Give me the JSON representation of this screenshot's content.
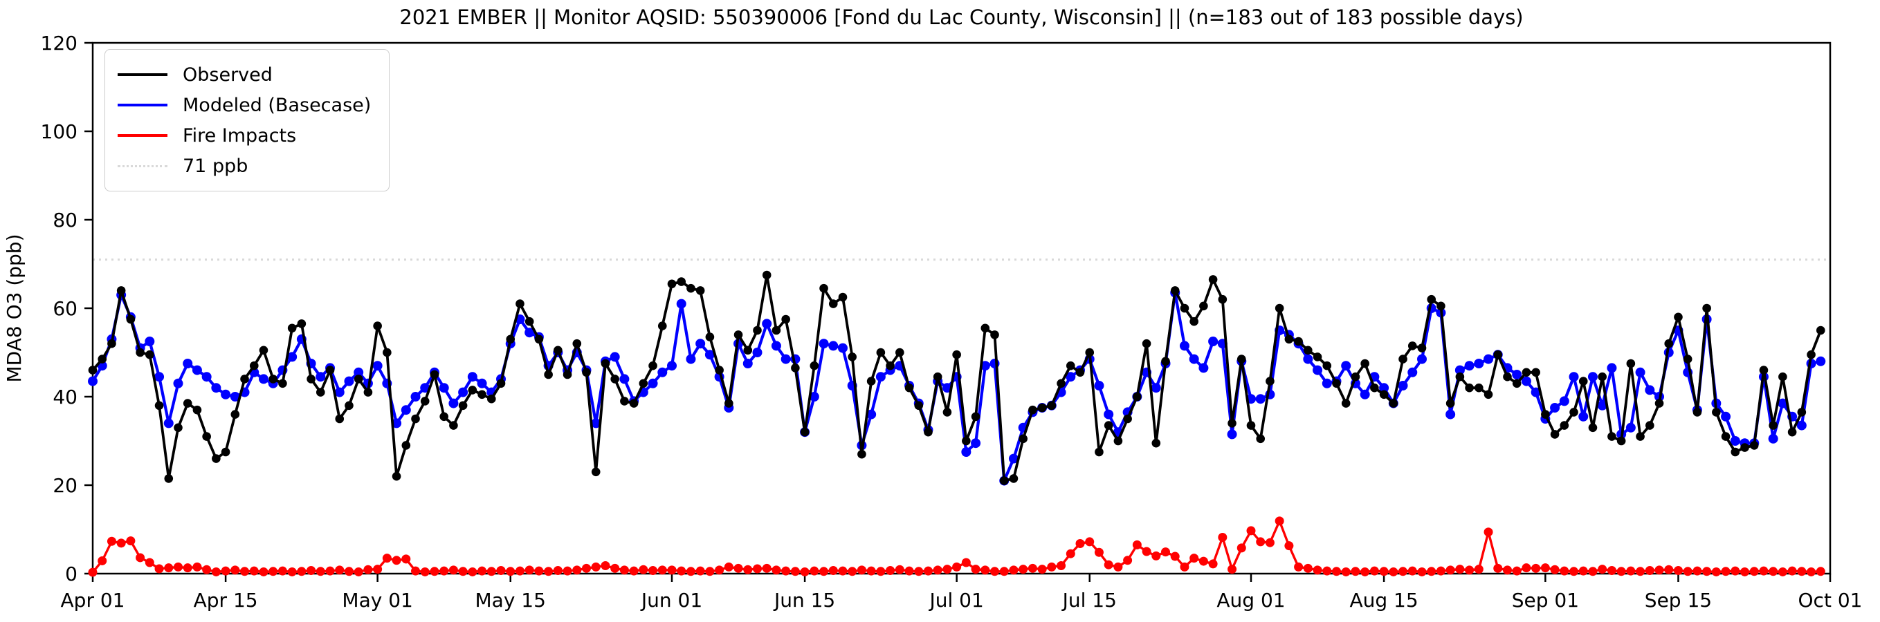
{
  "title": "2021 EMBER || Monitor AQSID: 550390006 [Fond du Lac County, Wisconsin] || (n=183 out of 183 possible days)",
  "chart_data": {
    "type": "line",
    "title": "2021 EMBER || Monitor AQSID: 550390006 [Fond du Lac County, Wisconsin] || (n=183 out of 183 possible days)",
    "xlabel": "",
    "ylabel": "MDA8 O3 (ppb)",
    "ylim": [
      0,
      120
    ],
    "yticks": [
      0,
      20,
      40,
      60,
      80,
      100,
      120
    ],
    "n_days": 183,
    "x_start": "Apr 01 2021",
    "x_end": "Oct 01 2021",
    "x_tick_labels": [
      "Apr 01",
      "Apr 15",
      "May 01",
      "May 15",
      "Jun 01",
      "Jun 15",
      "Jul 01",
      "Jul 15",
      "Aug 01",
      "Aug 15",
      "Sep 01",
      "Sep 15",
      "Oct 01"
    ],
    "x_tick_day_offsets": [
      0,
      14,
      30,
      44,
      61,
      75,
      91,
      105,
      122,
      136,
      153,
      167,
      183
    ],
    "grid": false,
    "legend_position": "upper left",
    "threshold_line": {
      "value": 71,
      "label": "71 ppb",
      "color": "#d9d9d9",
      "style": "dotted"
    },
    "series": [
      {
        "name": "Observed",
        "color": "#000000",
        "marker": "circle",
        "values": [
          46,
          48.5,
          52,
          64,
          57.5,
          50,
          49.5,
          38,
          21.5,
          33,
          38.5,
          37,
          31,
          26,
          27.5,
          36,
          44,
          47,
          50.5,
          44,
          43,
          55.5,
          56.5,
          44,
          41,
          46,
          35,
          38,
          44,
          41,
          56,
          50,
          22,
          29,
          35,
          39,
          45,
          35.5,
          33.5,
          38,
          41.5,
          40.5,
          39.5,
          43,
          53,
          61,
          57,
          53,
          45,
          50.5,
          45,
          52,
          45.5,
          23,
          47.5,
          44,
          39,
          38.5,
          43,
          47,
          56,
          65.5,
          66,
          64.5,
          64,
          53.5,
          46,
          38.5,
          54,
          50.5,
          55,
          67.5,
          55,
          57.5,
          46.5,
          32,
          47,
          64.5,
          61,
          62.5,
          49,
          27,
          43.5,
          50,
          47,
          50,
          42,
          38,
          32,
          44.5,
          36.5,
          49.5,
          30,
          35.5,
          55.5,
          54,
          21,
          21.5,
          30.5,
          37,
          37.5,
          38,
          43,
          47,
          45.5,
          50,
          27.5,
          33.5,
          30,
          35,
          40,
          52,
          29.5,
          48,
          64,
          60,
          57,
          60.5,
          66.5,
          62,
          34,
          48.5,
          33.5,
          30.5,
          43.5,
          60,
          53,
          52.5,
          50.5,
          49,
          47,
          43,
          38.5,
          44.5,
          47.5,
          42,
          40.5,
          38.5,
          48.5,
          51.5,
          51,
          62,
          60.5,
          38.5,
          44.5,
          42,
          42,
          40.5,
          49.5,
          44.5,
          43,
          45.5,
          45.5,
          36,
          31.5,
          33.5,
          36.5,
          43.5,
          33,
          44.5,
          31,
          30,
          47.5,
          31,
          33.5,
          38.5,
          52,
          58,
          48.5,
          36.5,
          60,
          36.5,
          31,
          27.5,
          28.5,
          29,
          46,
          33.5,
          44.5,
          32,
          36.5,
          49.5,
          55
        ]
      },
      {
        "name": "Modeled (Basecase)",
        "color": "#0000ff",
        "marker": "circle",
        "values": [
          43.5,
          47,
          53,
          63,
          58,
          51,
          52.5,
          44.5,
          34,
          43,
          47.5,
          46,
          44.5,
          42,
          40.5,
          40,
          41,
          45.5,
          44,
          43,
          46,
          49,
          53,
          47.5,
          44.5,
          46.5,
          41,
          43.5,
          45.5,
          43,
          47,
          43,
          34,
          37,
          40,
          42,
          45.5,
          42,
          38.5,
          41,
          44.5,
          43,
          41,
          44,
          52,
          57.5,
          54.5,
          53.5,
          47,
          50,
          46,
          50,
          46,
          34,
          48,
          49,
          44,
          39,
          41,
          43,
          45.5,
          47,
          61,
          48.5,
          52,
          49.5,
          44.5,
          37.5,
          52,
          47.5,
          50,
          56.5,
          51.5,
          48.5,
          48.5,
          32,
          40,
          52,
          51.5,
          51,
          42.5,
          29,
          36,
          44.5,
          46,
          47,
          42.5,
          38.5,
          32.5,
          43.5,
          42,
          44.5,
          27.5,
          29.5,
          47,
          47.5,
          21,
          26,
          33,
          36.5,
          37.5,
          38,
          41,
          44.5,
          46,
          48.5,
          42.5,
          36,
          32,
          36.5,
          40,
          45.5,
          42,
          47.5,
          63.5,
          51.5,
          48.5,
          46.5,
          52.5,
          52,
          31.5,
          48,
          39.5,
          39.5,
          40.5,
          55,
          54,
          52,
          48.5,
          46,
          43,
          43.5,
          47,
          43,
          40.5,
          44.5,
          42,
          38.5,
          42.5,
          45.5,
          48.5,
          60,
          59,
          36,
          46,
          47,
          47.5,
          48.5,
          49.5,
          46.5,
          45,
          43.5,
          41,
          35,
          37.5,
          39,
          44.5,
          35.5,
          44.5,
          38,
          46.5,
          31.5,
          33,
          45.5,
          41.5,
          40,
          50,
          55,
          45.5,
          37,
          57.5,
          38.5,
          35.5,
          30,
          29.5,
          29.5,
          44.5,
          30.5,
          38.5,
          35.5,
          33.5,
          47.5,
          48
        ]
      },
      {
        "name": "Fire Impacts",
        "color": "#ff0000",
        "marker": "circle",
        "values": [
          0.3,
          2.9,
          7.3,
          6.9,
          7.4,
          3.6,
          2.5,
          1.1,
          1.3,
          1.5,
          1.3,
          1.5,
          0.9,
          0.4,
          0.6,
          0.8,
          0.5,
          0.6,
          0.4,
          0.5,
          0.6,
          0.4,
          0.5,
          0.7,
          0.5,
          0.6,
          0.8,
          0.5,
          0.4,
          0.9,
          1.0,
          3.5,
          3.0,
          3.3,
          0.6,
          0.4,
          0.5,
          0.6,
          0.8,
          0.5,
          0.4,
          0.6,
          0.5,
          0.7,
          0.5,
          0.6,
          0.8,
          0.6,
          0.5,
          0.7,
          0.6,
          0.8,
          1.2,
          1.5,
          1.8,
          1.2,
          0.8,
          0.6,
          0.9,
          0.7,
          0.8,
          0.8,
          0.6,
          0.5,
          0.6,
          0.5,
          0.8,
          1.5,
          1.2,
          0.9,
          1.1,
          1.2,
          0.8,
          0.6,
          0.5,
          0.4,
          0.6,
          0.5,
          0.7,
          0.6,
          0.5,
          0.8,
          0.6,
          0.5,
          0.7,
          0.9,
          0.6,
          0.5,
          0.6,
          0.8,
          1.0,
          1.5,
          2.5,
          1.0,
          0.8,
          0.5,
          0.5,
          0.8,
          1.0,
          1.2,
          1.0,
          1.5,
          1.8,
          4.5,
          6.8,
          7.2,
          4.8,
          2.0,
          1.5,
          3.0,
          6.5,
          5.0,
          4.0,
          4.9,
          3.9,
          1.5,
          3.5,
          2.8,
          2.2,
          8.2,
          1.0,
          5.8,
          9.7,
          7.2,
          7.0,
          11.9,
          6.3,
          1.5,
          1.2,
          0.8,
          0.6,
          0.5,
          0.4,
          0.5,
          0.4,
          0.6,
          0.5,
          0.4,
          0.5,
          0.6,
          0.4,
          0.5,
          0.6,
          0.8,
          1.0,
          0.8,
          1.0,
          9.4,
          1.2,
          0.8,
          0.6,
          1.3,
          1.2,
          1.3,
          0.9,
          0.6,
          0.5,
          0.6,
          0.5,
          1.0,
          0.7,
          0.5,
          0.6,
          0.5,
          0.7,
          0.8,
          0.9,
          0.7,
          0.5,
          0.6,
          0.5,
          0.4,
          0.5,
          0.6,
          0.4,
          0.5,
          0.6,
          0.5,
          0.4,
          0.6,
          0.5,
          0.4,
          0.5
        ]
      }
    ]
  }
}
